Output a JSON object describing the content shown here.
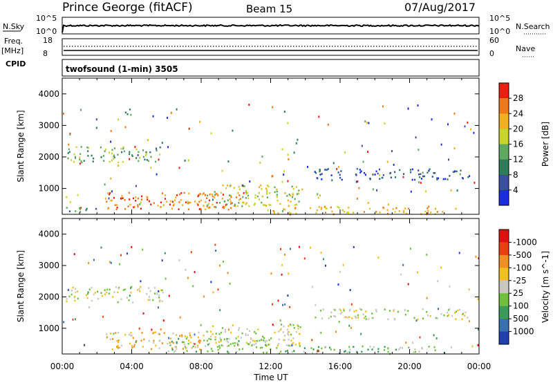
{
  "header": {
    "station": "Prince George (fitACF)",
    "beam": "Beam 15",
    "date": "07/Aug/2017"
  },
  "summary": {
    "nsky_label": "N.Sky",
    "nsky_ticks": [
      "10^5",
      "10^0"
    ],
    "nsearch_label": "N.Search",
    "nsearch_ticks": [
      "10^5",
      "10^0"
    ],
    "freq_label_line1": "Freq.",
    "freq_label_line2": "[MHz]",
    "freq_ticks": [
      "18",
      "8"
    ],
    "nave_label": "Nave",
    "nave_ticks": [
      "60",
      "0"
    ],
    "cpid_label": "CPID",
    "cpid_value": "twofsound (1-min) 3505"
  },
  "chart_data": [
    {
      "type": "heatmap",
      "name": "power",
      "ylabel": "Slant Range [km]",
      "yticks": [
        "1000",
        "2000",
        "3000",
        "4000"
      ],
      "ylim": [
        180,
        4500
      ],
      "colorbar_label": "Power [dB]",
      "colorbar_ticks": [
        "4",
        "8",
        "12",
        "16",
        "20",
        "24",
        "28"
      ],
      "colors": [
        "#1a2ee0",
        "#3b4fa0",
        "#2e7d5a",
        "#5fa85f",
        "#c8d42a",
        "#f0b020",
        "#f07818",
        "#e82010"
      ],
      "features": [
        {
          "t0": 0.2,
          "t1": 5.8,
          "r0": 1850,
          "r1": 2350,
          "level": 3
        },
        {
          "t0": 3.3,
          "t1": 4.0,
          "r0": 3350,
          "r1": 3550,
          "level": 2
        },
        {
          "t0": 2.5,
          "t1": 10.5,
          "r0": 350,
          "r1": 900,
          "level": 6
        },
        {
          "t0": 8.0,
          "t1": 13.8,
          "r0": 450,
          "r1": 1150,
          "level": 4
        },
        {
          "t0": 14.5,
          "t1": 23.5,
          "r0": 1300,
          "r1": 1650,
          "level": 1
        },
        {
          "t0": 12.0,
          "t1": 22.0,
          "r0": 200,
          "r1": 450,
          "level": 5
        },
        {
          "t0": 0.2,
          "t1": 2.0,
          "r0": 250,
          "r1": 450,
          "level": 2
        }
      ]
    },
    {
      "type": "heatmap",
      "name": "velocity",
      "ylabel": "Slant Range [km]",
      "yticks": [
        "1000",
        "2000",
        "3000",
        "4000"
      ],
      "ylim": [
        180,
        4500
      ],
      "colorbar_label": "Velocity [m s^-1]",
      "colorbar_ticks": [
        "1000",
        "500",
        "100",
        "25",
        "-25",
        "-100",
        "-500",
        "-1000"
      ],
      "colors": [
        "#2040b0",
        "#3a70b0",
        "#3a9a5a",
        "#70c040",
        "#c8c8c0",
        "#f0c020",
        "#f09020",
        "#e84010",
        "#e01010"
      ],
      "features": [
        {
          "t0": 0.2,
          "t1": 5.8,
          "r0": 1850,
          "r1": 2350,
          "level": 4
        },
        {
          "t0": 2.5,
          "t1": 8.0,
          "r0": 350,
          "r1": 900,
          "level": 5
        },
        {
          "t0": 8.0,
          "t1": 13.8,
          "r0": 450,
          "r1": 1150,
          "level": 4
        },
        {
          "t0": 6.0,
          "t1": 12.0,
          "r0": 250,
          "r1": 700,
          "level": 3
        },
        {
          "t0": 14.5,
          "t1": 23.5,
          "r0": 1300,
          "r1": 1650,
          "level": 4
        },
        {
          "t0": 12.0,
          "t1": 22.0,
          "r0": 200,
          "r1": 450,
          "level": 3
        }
      ]
    }
  ],
  "time_axis": {
    "xlabel": "Time UT",
    "ticks": [
      "00:00",
      "04:00",
      "08:00",
      "12:00",
      "16:00",
      "20:00",
      "00:00"
    ],
    "xlim": [
      0,
      24
    ]
  }
}
